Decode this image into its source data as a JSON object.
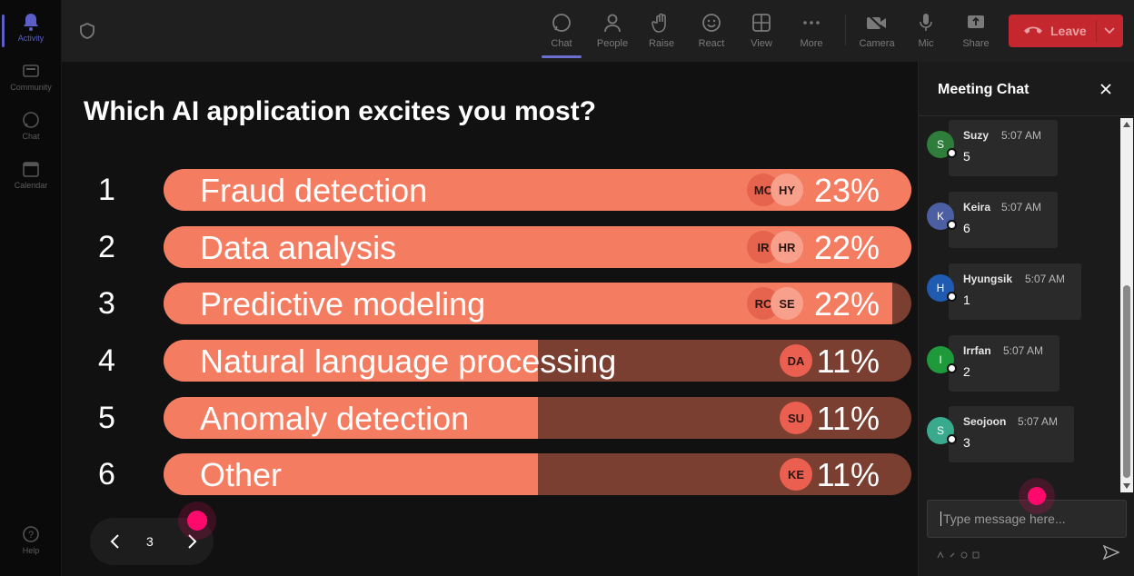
{
  "rail": {
    "items": [
      {
        "label": "Activity",
        "icon": "bell-icon",
        "active": true
      },
      {
        "label": "Community",
        "icon": "community-icon"
      },
      {
        "label": "Chat",
        "icon": "chat-icon"
      },
      {
        "label": "Calendar",
        "icon": "calendar-icon"
      }
    ],
    "help": "Help"
  },
  "toolbar": {
    "chat": "Chat",
    "people": "People",
    "raise": "Raise",
    "react": "React",
    "view": "View",
    "more": "More",
    "camera": "Camera",
    "mic": "Mic",
    "share": "Share",
    "leave": "Leave"
  },
  "poll": {
    "question": "Which AI application excites you most?",
    "page": "3",
    "options": [
      {
        "rank": "1",
        "label": "Fraud detection",
        "percent": "23%",
        "fill": 1.0,
        "avatars": [
          "MC",
          "HY"
        ]
      },
      {
        "rank": "2",
        "label": "Data analysis",
        "percent": "22%",
        "fill": 1.0,
        "avatars": [
          "IR",
          "HR"
        ]
      },
      {
        "rank": "3",
        "label": "Predictive modeling",
        "percent": "22%",
        "fill": 0.975,
        "avatars": [
          "RC",
          "SE"
        ]
      },
      {
        "rank": "4",
        "label": "Natural language processing",
        "percent": "11%",
        "fill": 0.5,
        "avatars": [
          "DA"
        ]
      },
      {
        "rank": "5",
        "label": "Anomaly detection",
        "percent": "11%",
        "fill": 0.5,
        "avatars": [
          "SU"
        ]
      },
      {
        "rank": "6",
        "label": "Other",
        "percent": "11%",
        "fill": 0.5,
        "avatars": [
          "KE"
        ]
      }
    ]
  },
  "chat": {
    "title": "Meeting Chat",
    "placeholder": "Type message here...",
    "messages": [
      {
        "initial": "S",
        "name": "Suzy",
        "time": "5:07 AM",
        "text": "5",
        "color": "#2e7d3b"
      },
      {
        "initial": "K",
        "name": "Keira",
        "time": "5:07 AM",
        "text": "6",
        "color": "#4d5fa3"
      },
      {
        "initial": "H",
        "name": "Hyungsik",
        "time": "5:07 AM",
        "text": "1",
        "color": "#1f5bb0"
      },
      {
        "initial": "I",
        "name": "Irrfan",
        "time": "5:07 AM",
        "text": "2",
        "color": "#1e9a3a"
      },
      {
        "initial": "S",
        "name": "Seojoon",
        "time": "5:07 AM",
        "text": "3",
        "color": "#3aaa8e"
      }
    ]
  },
  "colors": {
    "bar_fill": "#f47c61",
    "bar_track": "#7a3f31",
    "leave": "#c4282e",
    "accent": "#5b5fc7",
    "cursor": "#ff0a6c"
  }
}
